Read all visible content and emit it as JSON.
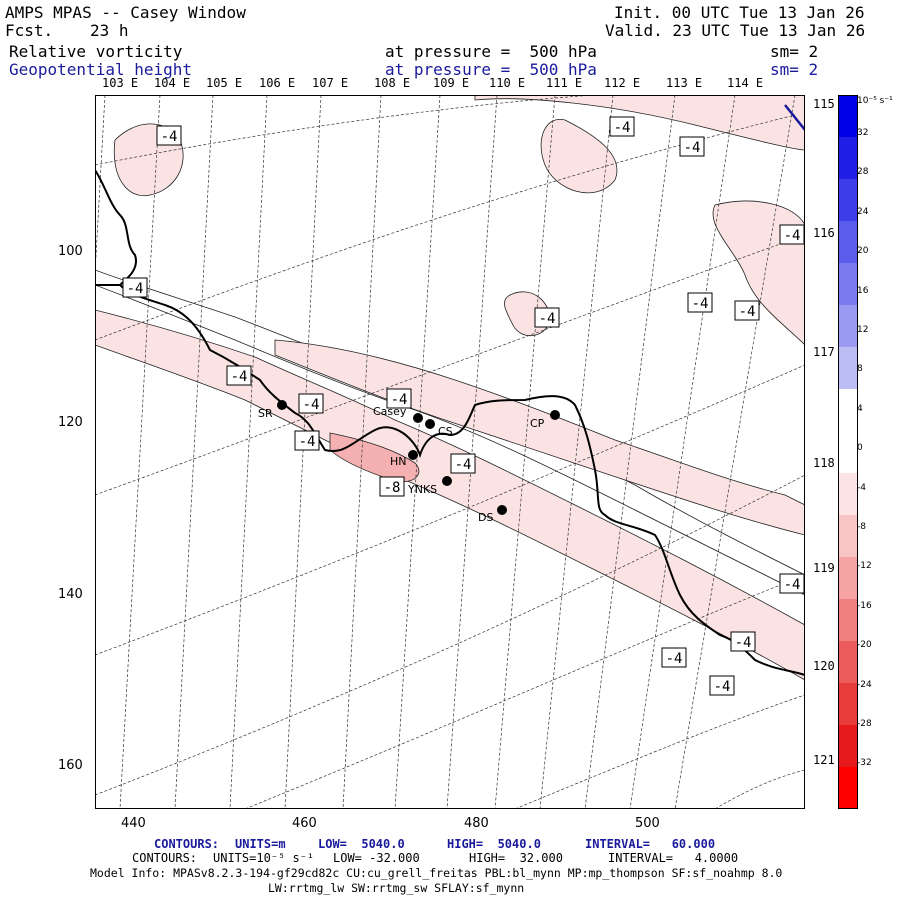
{
  "header": {
    "title": "AMPS MPAS -- Casey Window",
    "fcst_label": "Fcst.",
    "fcst_value": "23 h",
    "init": "Init. 00 UTC Tue 13 Jan 26",
    "valid": "Valid. 23 UTC Tue 13 Jan 26",
    "field1": {
      "name": "Relative vorticity",
      "pressure": "at pressure =  500 hPa",
      "sm": "sm= 2"
    },
    "field2": {
      "name": "Geopotential height",
      "pressure": "at pressure =  500 hPa",
      "sm": "sm= 2"
    }
  },
  "axes": {
    "lon_top": [
      "103 E",
      "104 E",
      "105 E",
      "106 E",
      "107 E",
      "108 E",
      "109 E",
      "110 E",
      "111 E",
      "112 E",
      "113 E",
      "114 E"
    ],
    "lon_right": [
      "115 E",
      "116 E",
      "117 E",
      "118 E",
      "119 E",
      "120 E",
      "121 E"
    ],
    "y_ticks": [
      "100",
      "120",
      "140",
      "160"
    ],
    "x_ticks": [
      "440",
      "460",
      "480",
      "500"
    ]
  },
  "colorbar": {
    "unit": "10⁻⁵ s⁻¹",
    "labels": [
      "32",
      "28",
      "24",
      "20",
      "16",
      "12",
      "8",
      "4",
      "0",
      "-4",
      "-8",
      "-12",
      "-16",
      "-20",
      "-24",
      "-28",
      "-32"
    ],
    "colors": [
      "#0000e6",
      "#1f1fe8",
      "#3d3dea",
      "#5c5cec",
      "#7b7bef",
      "#9a9af2",
      "#bdbdf6",
      "#ffffff",
      "#ffffff",
      "#fde4e4",
      "#f9c4c4",
      "#f5a3a3",
      "#f08080",
      "#ec5c5c",
      "#e83b3b",
      "#e61a1a",
      "#ff0000"
    ]
  },
  "stations": [
    {
      "name": "SR"
    },
    {
      "name": "Casey"
    },
    {
      "name": "CS"
    },
    {
      "name": "CP"
    },
    {
      "name": "HN"
    },
    {
      "name": "YNKS"
    },
    {
      "name": "DS"
    }
  ],
  "contour_labels": [
    "-4",
    "-4",
    "-4",
    "-4",
    "-4",
    "-4",
    "-4",
    "-4",
    "-4",
    "-4",
    "-4",
    "-4",
    "-4",
    "-4",
    "-4",
    "-4",
    "-4",
    "-8"
  ],
  "footer": {
    "line1": {
      "contours": "CONTOURS:",
      "units": "UNITS=m",
      "low": "LOW=  5040.0",
      "high": "HIGH=  5040.0",
      "interval": "INTERVAL=   60.000"
    },
    "line2": {
      "contours": "CONTOURS:",
      "units": "UNITS=10⁻⁵ s⁻¹",
      "low": "LOW= -32.000",
      "high": "HIGH=  32.000",
      "interval": "INTERVAL=   4.0000"
    },
    "model1": "Model Info: MPASv8.2.3-194-gf29cd82c CU:cu_grell_freitas PBL:bl_mynn MP:mp_thompson SF:sf_noahmp 8.0",
    "model2": "LW:rrtmg_lw SW:rrtmg_sw SFLAY:sf_mynn"
  }
}
